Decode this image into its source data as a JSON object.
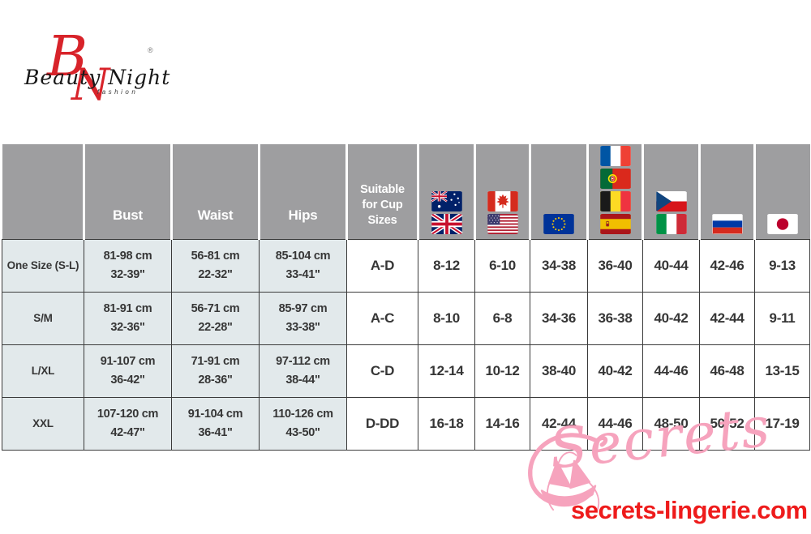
{
  "brand": {
    "name_script": "Beauty Night",
    "monogram_b": "B",
    "monogram_n": "N",
    "sub_label": "fashion",
    "registered_mark": "®"
  },
  "table": {
    "header": {
      "measure_columns": [
        "",
        "Bust",
        "Waist",
        "Hips",
        "Suitable for Cup Sizes"
      ],
      "flag_columns": [
        {
          "name": "au-uk",
          "countries": [
            "australia",
            "united-kingdom"
          ]
        },
        {
          "name": "ca-us",
          "countries": [
            "canada",
            "united-states"
          ]
        },
        {
          "name": "eu",
          "countries": [
            "european-union"
          ]
        },
        {
          "name": "fr-pt-be-es",
          "countries": [
            "france",
            "portugal",
            "belgium",
            "spain"
          ]
        },
        {
          "name": "cz-it",
          "countries": [
            "czech-republic",
            "italy"
          ]
        },
        {
          "name": "ru",
          "countries": [
            "russia"
          ]
        },
        {
          "name": "jp",
          "countries": [
            "japan"
          ]
        }
      ]
    },
    "rows": [
      {
        "cells": [
          "One Size (S-L)",
          "81-98 cm\n32-39\"",
          "56-81 cm\n22-32\"",
          "85-104 cm\n33-41\"",
          "A-D",
          "8-12",
          "6-10",
          "34-38",
          "36-40",
          "40-44",
          "42-46",
          "9-13"
        ]
      },
      {
        "cells": [
          "S/M",
          "81-91 cm\n32-36\"",
          "56-71 cm\n22-28\"",
          "85-97 cm\n33-38\"",
          "A-C",
          "8-10",
          "6-8",
          "34-36",
          "36-38",
          "40-42",
          "42-44",
          "9-11"
        ]
      },
      {
        "cells": [
          "L/XL",
          "91-107 cm\n36-42\"",
          "71-91 cm\n28-36\"",
          "97-112 cm\n38-44\"",
          "C-D",
          "12-14",
          "10-12",
          "38-40",
          "40-42",
          "44-46",
          "46-48",
          "13-15"
        ]
      },
      {
        "cells": [
          "XXL",
          "107-120 cm\n42-47\"",
          "91-104 cm\n36-41\"",
          "110-126 cm\n43-50\"",
          "D-DD",
          "16-18",
          "14-16",
          "42-44",
          "44-46",
          "48-50",
          "50-52",
          "17-19"
        ]
      }
    ]
  },
  "watermark": {
    "script_text": "Secrets",
    "site_url": "secrets-lingerie.com"
  },
  "colors": {
    "header_bg": "#9e9ea0",
    "light_cell_bg": "#e2e9eb",
    "cell_border": "#3b3b3b",
    "watermark_pink": "#f6a3bd",
    "watermark_red": "#ee1b1b",
    "brand_red": "#d8232a"
  }
}
